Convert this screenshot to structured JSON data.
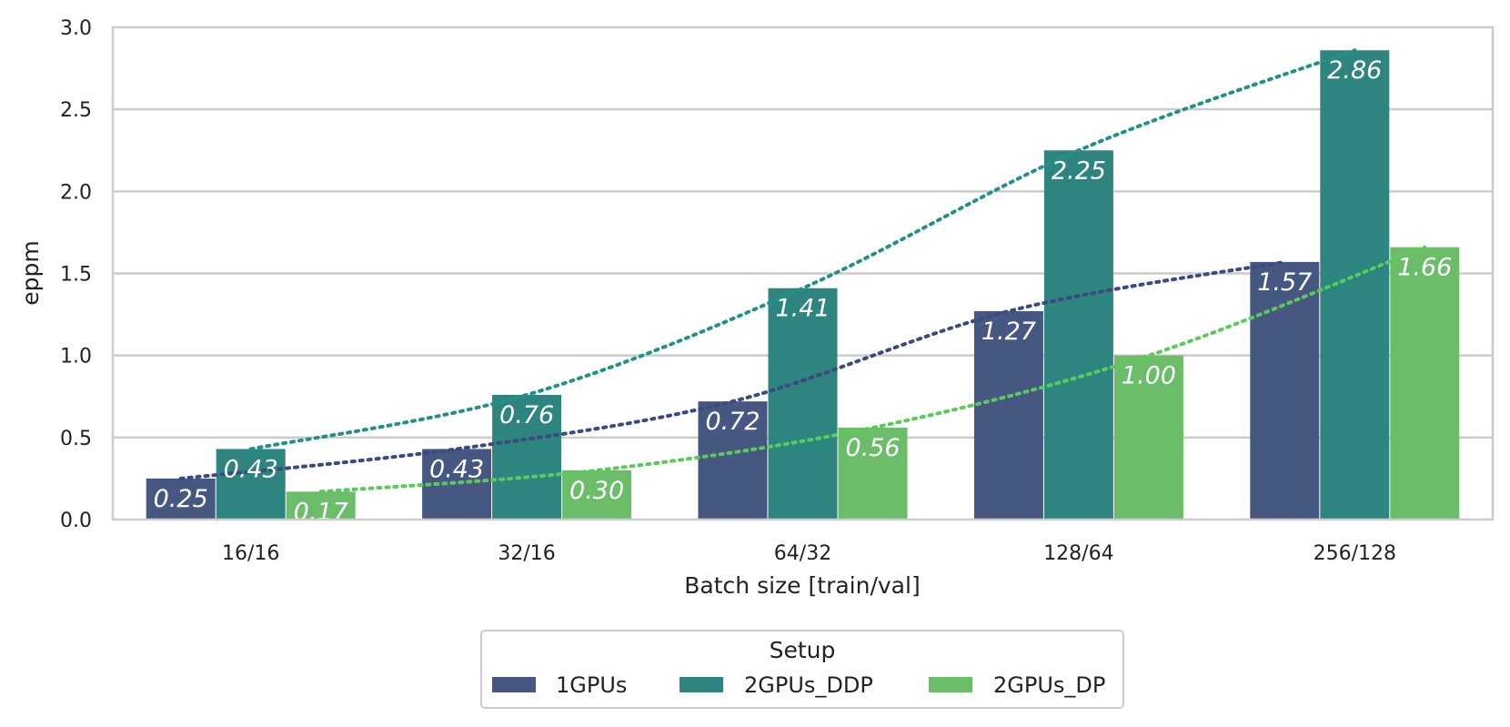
{
  "chart_data": {
    "type": "bar",
    "title": "",
    "xlabel": "Batch size [train/val]",
    "ylabel": "eppm",
    "ylim": [
      0,
      3.0
    ],
    "yticks": [
      "0.0",
      "0.5",
      "1.0",
      "1.5",
      "2.0",
      "2.5",
      "3.0"
    ],
    "grid": true,
    "categories": [
      "16/16",
      "32/16",
      "64/32",
      "128/64",
      "256/128"
    ],
    "series": [
      {
        "name": "1GPUs",
        "color": "#465781",
        "line_color": "#3b4a80",
        "values": [
          0.25,
          0.43,
          0.72,
          1.27,
          1.57
        ],
        "labels": [
          "0.25",
          "0.43",
          "0.72",
          "1.27",
          "1.57"
        ]
      },
      {
        "name": "2GPUs_DDP",
        "color": "#2e8580",
        "line_color": "#23918a",
        "values": [
          0.43,
          0.76,
          1.41,
          2.25,
          2.86
        ],
        "labels": [
          "0.43",
          "0.76",
          "1.41",
          "2.25",
          "2.86"
        ]
      },
      {
        "name": "2GPUs_DP",
        "color": "#6cbd6a",
        "line_color": "#5cc95c",
        "values": [
          0.17,
          0.3,
          0.56,
          1.0,
          1.66
        ],
        "labels": [
          "0.17",
          "0.30",
          "0.56",
          "1.00",
          "1.66"
        ]
      }
    ],
    "trendlines": "dotted",
    "legend": {
      "title": "Setup",
      "placement": "bottom-center"
    }
  }
}
